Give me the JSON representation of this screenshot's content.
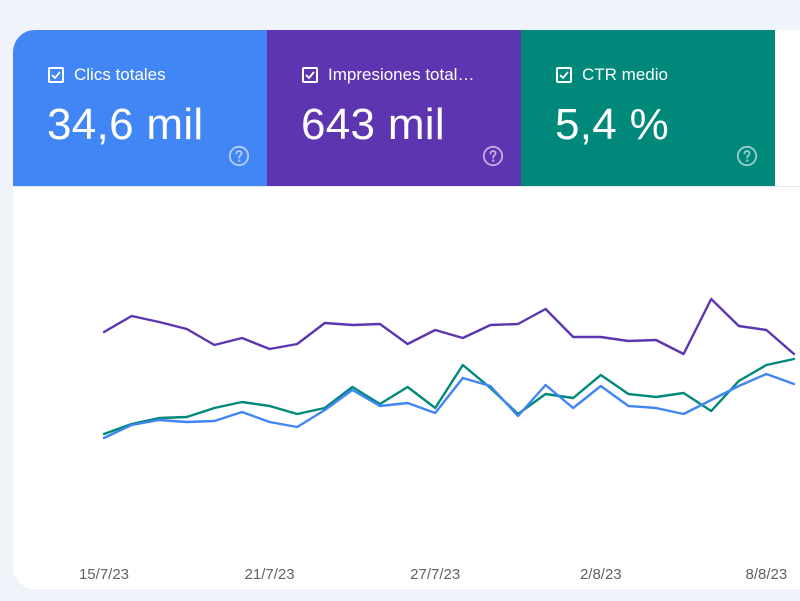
{
  "metrics": {
    "clicks": {
      "label": "Clics totales",
      "value": "34,6 mil",
      "color": "#4285f4",
      "help_icon": "help-circle-icon"
    },
    "impressions": {
      "label": "Impresiones total…",
      "value": "643 mil",
      "color": "#5e35b1",
      "help_icon": "help-circle-icon"
    },
    "ctr": {
      "label": "CTR medio",
      "value": "5,4 %",
      "color": "#00897b",
      "help_icon": "help-circle-icon"
    }
  },
  "chart_data": {
    "type": "line",
    "x": [
      "15/7/23",
      "16/7/23",
      "17/7/23",
      "18/7/23",
      "19/7/23",
      "20/7/23",
      "21/7/23",
      "22/7/23",
      "23/7/23",
      "24/7/23",
      "25/7/23",
      "26/7/23",
      "27/7/23",
      "28/7/23",
      "29/7/23",
      "30/7/23",
      "31/7/23",
      "1/8/23",
      "2/8/23",
      "3/8/23",
      "4/8/23",
      "5/8/23",
      "6/8/23",
      "7/8/23",
      "8/8/23",
      "9/8/23"
    ],
    "x_tick_labels": [
      "15/7/23",
      "21/7/23",
      "27/7/23",
      "2/8/23",
      "8/8/23"
    ],
    "grid": false,
    "legend": "none",
    "series": [
      {
        "name": "Impresiones total…",
        "color": "#5e35b1",
        "values": [
          332,
          316,
          322,
          329,
          345,
          338,
          349,
          344,
          323,
          325,
          324,
          344,
          330,
          338,
          325,
          324,
          309,
          337,
          337,
          341,
          340,
          354,
          299,
          326,
          330,
          354
        ]
      },
      {
        "name": "CTR medio",
        "color": "#00897b",
        "values": [
          434,
          424,
          418,
          417,
          408,
          402,
          406,
          414,
          408,
          387,
          404,
          387,
          408,
          365,
          388,
          414,
          394,
          398,
          375,
          394,
          397,
          393,
          411,
          381,
          365,
          359
        ]
      },
      {
        "name": "Clics totales",
        "color": "#4285f4",
        "values": [
          438,
          425,
          420,
          422,
          421,
          412,
          422,
          427,
          410,
          390,
          406,
          403,
          413,
          378,
          386,
          416,
          385,
          408,
          386,
          406,
          408,
          414,
          400,
          386,
          374,
          384
        ]
      }
    ]
  }
}
